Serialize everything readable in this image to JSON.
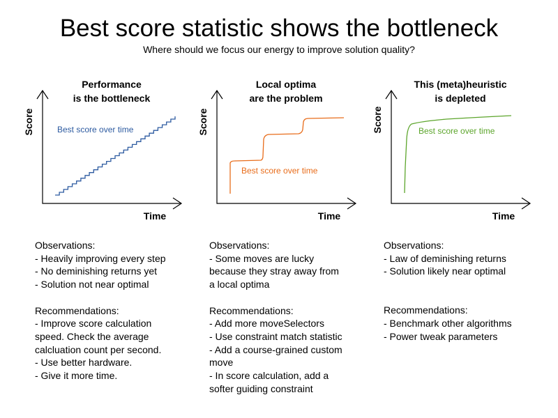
{
  "title": "Best score statistic shows the bottleneck",
  "subtitle": "Where should we focus our energy to improve solution quality?",
  "colors": {
    "blue": "#2c5aa0",
    "orange": "#e86c1a",
    "green": "#5ca52b"
  },
  "panels": [
    {
      "title_lines": [
        "Performance",
        "is the bottleneck"
      ],
      "y_axis_label": "Score",
      "x_axis_label": "Time",
      "series_label": "Best score over time",
      "curve_shape": "steady-staircase",
      "observations_heading": "Observations:",
      "observations": [
        "- Heavily improving every step",
        "- No deminishing returns yet",
        "- Solution not near optimal"
      ],
      "recommendations_heading": "Recommendations:",
      "recommendations": [
        "- Improve score calculation",
        "speed. Check the average",
        "calcluation count per second.",
        "- Use better hardware.",
        "- Give it more time."
      ]
    },
    {
      "title_lines": [
        "Local optima",
        "are the problem"
      ],
      "y_axis_label": "Score",
      "x_axis_label": "Time",
      "series_label": "Best score over time",
      "curve_shape": "step-plateaus",
      "observations_heading": "Observations:",
      "observations": [
        "- Some moves are lucky",
        "because they stray away from",
        "a local optima"
      ],
      "recommendations_heading": "Recommendations:",
      "recommendations": [
        "- Add more moveSelectors",
        "- Use constraint match statistic",
        "- Add a course-grained custom",
        "move",
        "- In score calculation, add a",
        "softer guiding constraint"
      ]
    },
    {
      "title_lines": [
        "This (meta)heuristic",
        "is depleted"
      ],
      "y_axis_label": "Score",
      "x_axis_label": "Time",
      "series_label": "Best score over time",
      "curve_shape": "quick-rise-then-flat",
      "observations_heading": "Observations:",
      "observations": [
        "- Law of deminishing returns",
        "- Solution likely near optimal"
      ],
      "recommendations_heading": "Recommendations:",
      "recommendations": [
        "- Benchmark other algorithms",
        "- Power tweak parameters"
      ]
    }
  ]
}
